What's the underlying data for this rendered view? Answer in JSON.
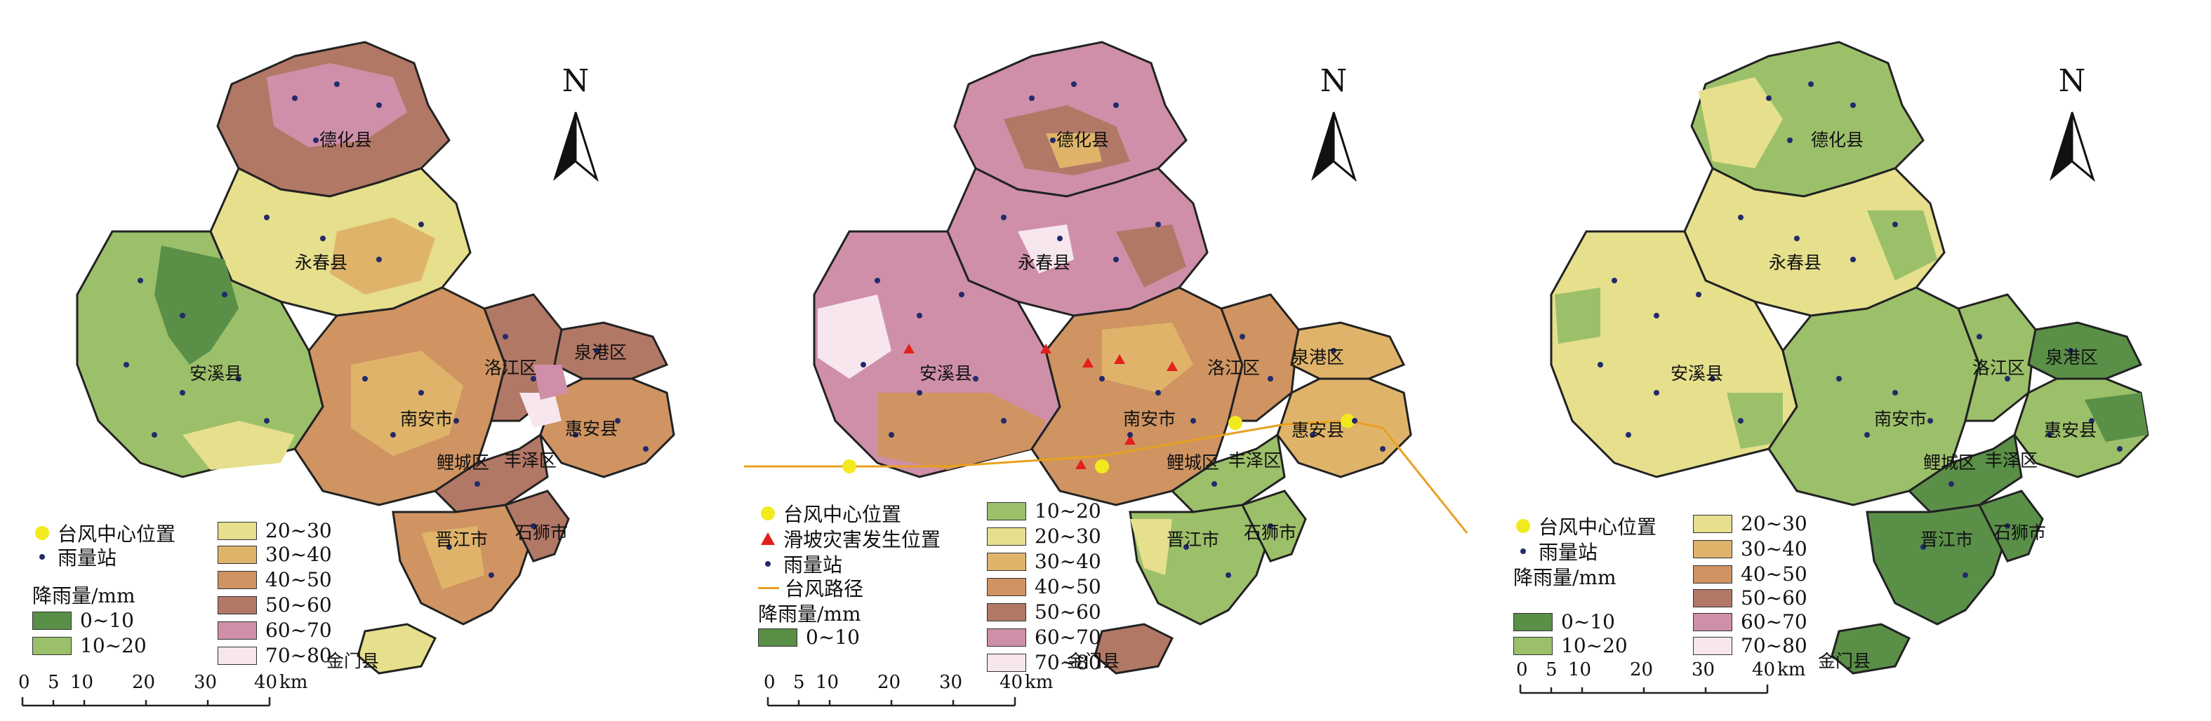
{
  "north_letter": "N",
  "colors": {
    "c0_10": "#5a8f48",
    "c10_20": "#9cc06a",
    "c20_30": "#e6df8c",
    "c30_40": "#dfb46a",
    "c40_50": "#cf9462",
    "c50_60": "#b27866",
    "c60_70": "#cf8fa8",
    "c70_80": "#f7e6ee",
    "typhoon_center": "#f2ea1e",
    "rain_station": "#232a6b",
    "landslide": "#e3201b",
    "typhoon_path": "#e8a020"
  },
  "counties": {
    "dehua": "德化县",
    "yongchun": "永春县",
    "anxi": "安溪县",
    "nanan": "南安市",
    "luojiang": "洛江区",
    "quangang": "泉港区",
    "huian": "惠安县",
    "licheng": "鲤城区",
    "fengze": "丰泽区",
    "jinjiang": "晋江市",
    "shishi": "石狮市",
    "jinjiang_county": "金门县"
  },
  "legend": {
    "title": "降雨量/mm",
    "typhoon_center": "台风中心位置",
    "rain_station": "雨量站",
    "landslide": "滑坡灾害发生位置",
    "typhoon_path": "台风路径",
    "ranges": [
      "0~10",
      "10~20",
      "20~30",
      "30~40",
      "40~50",
      "50~60",
      "60~70",
      "70~80"
    ]
  },
  "scale": {
    "ticks": [
      "0",
      "5",
      "10",
      "20",
      "30",
      "40"
    ],
    "unit": "km"
  }
}
